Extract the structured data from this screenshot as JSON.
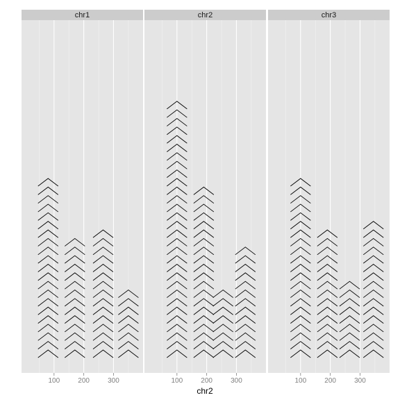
{
  "chart_data": {
    "type": "faceted_glyph_histogram",
    "glyph": "chevron",
    "xlabel": "chr2",
    "ylabel": "",
    "x_ticks": [
      100,
      200,
      300
    ],
    "x_tick_labels": [
      "100",
      "200",
      "300"
    ],
    "xlim": [
      0,
      390
    ],
    "panels": [
      {
        "name": "chr1",
        "columns": [
          {
            "x": 80,
            "count": 21
          },
          {
            "x": 170,
            "count": 14
          },
          {
            "x": 265,
            "count": 15
          },
          {
            "x": 350,
            "count": 8
          }
        ]
      },
      {
        "name": "chr2",
        "columns": [
          {
            "x": 100,
            "count": 30
          },
          {
            "x": 190,
            "count": 20
          },
          {
            "x": 255,
            "count": 8
          },
          {
            "x": 330,
            "count": 13
          }
        ]
      },
      {
        "name": "chr3",
        "columns": [
          {
            "x": 100,
            "count": 21
          },
          {
            "x": 190,
            "count": 15
          },
          {
            "x": 265,
            "count": 9
          },
          {
            "x": 345,
            "count": 16
          }
        ]
      }
    ],
    "colors": {
      "panel_background": "#e5e5e5",
      "grid_major": "#ffffff",
      "grid_minor": "#f2f2f2",
      "strip_background": "#cccccc",
      "glyph": "#000000",
      "tick": "#7f7f7f"
    },
    "grid": true
  }
}
